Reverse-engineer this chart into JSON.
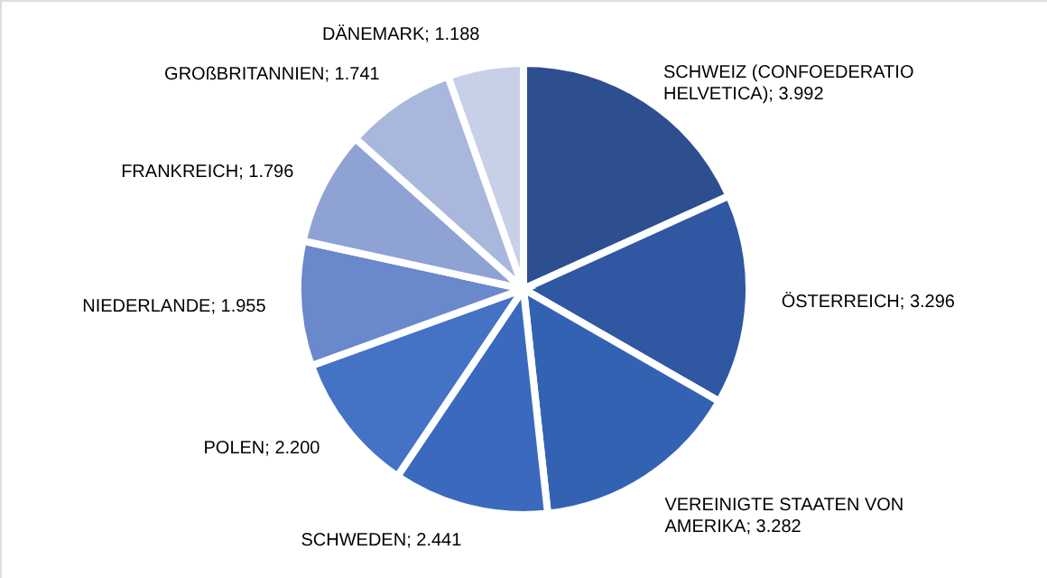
{
  "chart_data": {
    "type": "pie",
    "categories": [
      "SCHWEIZ (CONFOEDERATIO HELVETICA)",
      "ÖSTERREICH",
      "VEREINIGTE STAATEN VON AMERIKA",
      "SCHWEDEN",
      "POLEN",
      "NIEDERLANDE",
      "FRANKREICH",
      "GROßBRITANNIEN",
      "DÄNEMARK"
    ],
    "values": [
      3992,
      3296,
      3282,
      2441,
      2200,
      1955,
      1796,
      1741,
      1188
    ],
    "value_labels": [
      "3.992",
      "3.296",
      "3.282",
      "2.441",
      "2.200",
      "1.955",
      "1.796",
      "1.741",
      "1.188"
    ],
    "colors": [
      "#2e4f8f",
      "#2f57a2",
      "#3462b3",
      "#3a69bd",
      "#4472c4",
      "#6a88cc",
      "#8fa2d4",
      "#a9b7dc",
      "#c8d0e8"
    ]
  }
}
